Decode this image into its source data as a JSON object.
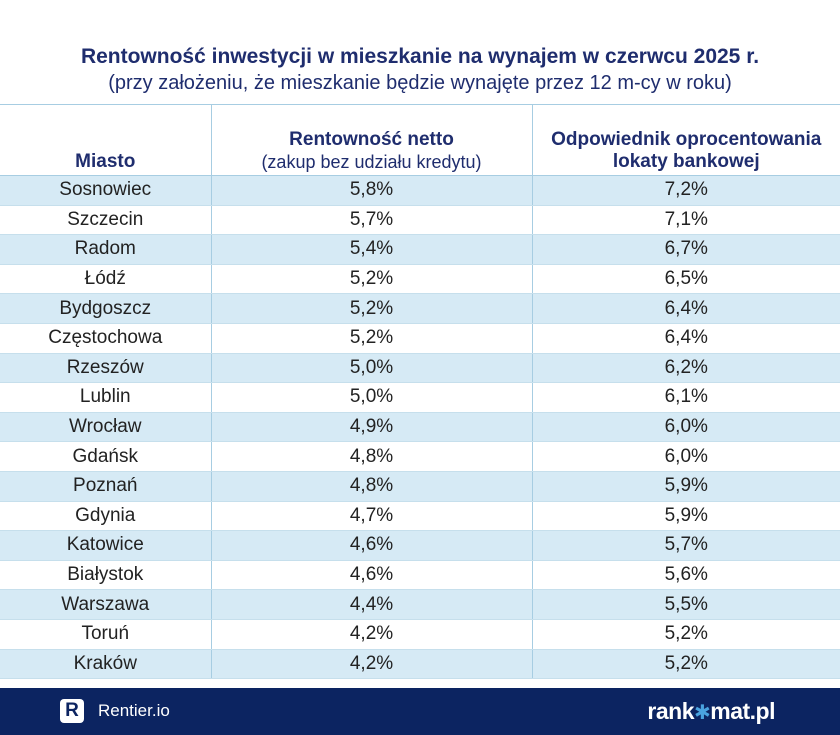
{
  "title": "Rentowność inwestycji w mieszkanie na wynajem w czerwcu 2025 r.",
  "subtitle": "(przy założeniu, że mieszkanie będzie wynajęte przez 12 m-cy w roku)",
  "chart_data": {
    "type": "table",
    "columns": [
      {
        "label": "Miasto",
        "sublabel": ""
      },
      {
        "label": "Rentowność netto",
        "sublabel": "(zakup bez udziału kredytu)"
      },
      {
        "label_line1": "Odpowiednik oprocentowania",
        "label_line2": "lokaty bankowej"
      }
    ],
    "rows": [
      {
        "city": "Sosnowiec",
        "net": "5,8%",
        "deposit": "7,2%"
      },
      {
        "city": "Szczecin",
        "net": "5,7%",
        "deposit": "7,1%"
      },
      {
        "city": "Radom",
        "net": "5,4%",
        "deposit": "6,7%"
      },
      {
        "city": "Łódź",
        "net": "5,2%",
        "deposit": "6,5%"
      },
      {
        "city": "Bydgoszcz",
        "net": "5,2%",
        "deposit": "6,4%"
      },
      {
        "city": "Częstochowa",
        "net": "5,2%",
        "deposit": "6,4%"
      },
      {
        "city": "Rzeszów",
        "net": "5,0%",
        "deposit": "6,2%"
      },
      {
        "city": "Lublin",
        "net": "5,0%",
        "deposit": "6,1%"
      },
      {
        "city": "Wrocław",
        "net": "4,9%",
        "deposit": "6,0%"
      },
      {
        "city": "Gdańsk",
        "net": "4,8%",
        "deposit": "6,0%"
      },
      {
        "city": "Poznań",
        "net": "4,8%",
        "deposit": "5,9%"
      },
      {
        "city": "Gdynia",
        "net": "4,7%",
        "deposit": "5,9%"
      },
      {
        "city": "Katowice",
        "net": "4,6%",
        "deposit": "5,7%"
      },
      {
        "city": "Białystok",
        "net": "4,6%",
        "deposit": "5,6%"
      },
      {
        "city": "Warszawa",
        "net": "4,4%",
        "deposit": "5,5%"
      },
      {
        "city": "Toruń",
        "net": "4,2%",
        "deposit": "5,2%"
      },
      {
        "city": "Kraków",
        "net": "4,2%",
        "deposit": "5,2%"
      }
    ]
  },
  "footer": {
    "left_logo_letter": "R",
    "left_brand": "Rentier.io",
    "right_brand_part1": "rank",
    "right_brand_star": "✱",
    "right_brand_part2": "mat.pl"
  },
  "colors": {
    "title": "#1f2d6e",
    "row_stripe": "#d6eaf5",
    "footer_bg": "#0c2461",
    "accent": "#4aa3df"
  }
}
